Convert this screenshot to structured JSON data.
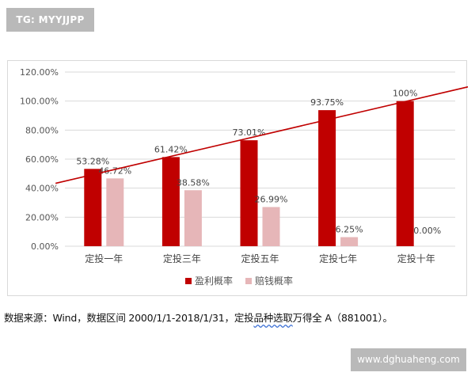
{
  "watermarks": {
    "top_left": "TG: MYYJJPP",
    "bottom_right": "www.dghuaheng.com"
  },
  "source": {
    "prefix": "数据来源：Wind，数据区间 2000/1/1-2018/1/31，定投",
    "underlined": "品种选取",
    "suffix": "万得全 A（881001）。"
  },
  "colors": {
    "profit": "#c00000",
    "loss": "#e6b6b8",
    "trend": "#c00000",
    "grid": "#d9d9d9"
  },
  "chart_data": {
    "type": "bar",
    "categories": [
      "定投一年",
      "定投三年",
      "定投五年",
      "定投七年",
      "定投十年"
    ],
    "series": [
      {
        "name": "盈利概率",
        "values": [
          53.28,
          61.42,
          73.01,
          93.75,
          100
        ],
        "labels": [
          "53.28%",
          "61.42%",
          "73.01%",
          "93.75%",
          "100%"
        ]
      },
      {
        "name": "赔钱概率",
        "values": [
          46.72,
          38.58,
          26.99,
          6.25,
          0.0
        ],
        "labels": [
          "46.72%",
          "38.58%",
          "26.99%",
          "6.25%",
          "0.00%"
        ]
      }
    ],
    "yticks": [
      "0.00%",
      "20.00%",
      "40.00%",
      "60.00%",
      "80.00%",
      "100.00%",
      "120.00%"
    ],
    "ylim": [
      0,
      120
    ],
    "grid": true,
    "legend_position": "bottom",
    "trendline": {
      "series": "盈利概率",
      "type": "linear"
    }
  }
}
